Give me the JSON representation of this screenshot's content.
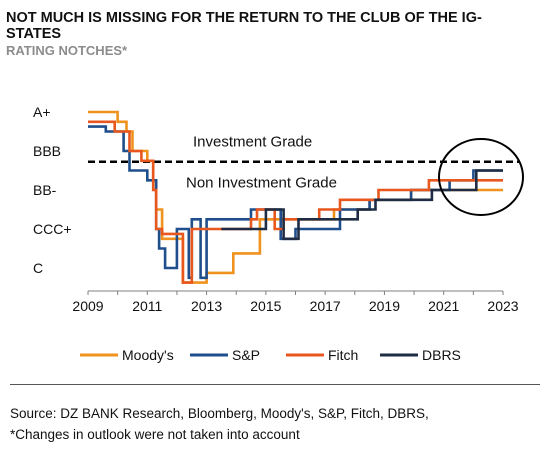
{
  "header": {
    "title": "NOT MUCH IS MISSING FOR THE RETURN TO THE CLUB OF THE IG-STATES",
    "subtitle": "RATING NOTCHES*"
  },
  "footer": {
    "source": "Source: DZ BANK Research, Bloomberg, Moody's, S&P, Fitch, DBRS,",
    "note": "*Changes in outlook were not taken into account"
  },
  "colors": {
    "moodys": "#F0921E",
    "sp": "#1F4E8C",
    "fitch": "#E8571E",
    "dbrs": "#1F2D44",
    "axis": "#7f7f7f"
  },
  "chart_data": {
    "type": "line",
    "title": "NOT MUCH IS MISSING FOR THE RETURN TO THE CLUB OF THE IG-STATES",
    "subtitle": "RATING NOTCHES*",
    "xlim": [
      2009,
      2023
    ],
    "ylim": [
      0,
      17
    ],
    "x_ticks": [
      2009,
      2011,
      2013,
      2015,
      2017,
      2019,
      2021,
      2023
    ],
    "y_ticks": [
      {
        "label": "A+",
        "value": 16
      },
      {
        "label": "BBB",
        "value": 12
      },
      {
        "label": "BB-",
        "value": 8
      },
      {
        "label": "CCC+",
        "value": 4
      },
      {
        "label": "C",
        "value": 0
      }
    ],
    "threshold": {
      "value": 10.9,
      "label_above": "Investment Grade",
      "label_below": "Non Investment Grade"
    },
    "legend_position": "bottom",
    "series": [
      {
        "name": "Moody's",
        "points": [
          [
            2009,
            16
          ],
          [
            2010.0,
            16
          ],
          [
            2010.0,
            15
          ],
          [
            2010.3,
            15
          ],
          [
            2010.3,
            14
          ],
          [
            2010.5,
            14
          ],
          [
            2010.5,
            12
          ],
          [
            2011.0,
            12
          ],
          [
            2011.0,
            11
          ],
          [
            2011.2,
            11
          ],
          [
            2011.2,
            9
          ],
          [
            2011.3,
            9
          ],
          [
            2011.3,
            6
          ],
          [
            2011.5,
            6
          ],
          [
            2011.5,
            3
          ],
          [
            2012.2,
            3
          ],
          [
            2012.2,
            -1.5
          ],
          [
            2013.0,
            -1.5
          ],
          [
            2013.0,
            -0.5
          ],
          [
            2013.9,
            -0.5
          ],
          [
            2013.9,
            1.5
          ],
          [
            2014.8,
            1.5
          ],
          [
            2014.8,
            5
          ],
          [
            2017.3,
            5
          ],
          [
            2017.3,
            6
          ],
          [
            2018.5,
            6
          ],
          [
            2018.5,
            7
          ],
          [
            2019.9,
            7
          ],
          [
            2019.9,
            8
          ],
          [
            2023,
            8
          ]
        ]
      },
      {
        "name": "S&P",
        "points": [
          [
            2009,
            14.5
          ],
          [
            2009.6,
            14.5
          ],
          [
            2009.6,
            14
          ],
          [
            2010.2,
            14
          ],
          [
            2010.2,
            12
          ],
          [
            2010.4,
            12
          ],
          [
            2010.4,
            10
          ],
          [
            2011.0,
            10
          ],
          [
            2011.0,
            9
          ],
          [
            2011.3,
            9
          ],
          [
            2011.3,
            4
          ],
          [
            2011.4,
            4
          ],
          [
            2011.4,
            2
          ],
          [
            2011.6,
            2
          ],
          [
            2011.6,
            0
          ],
          [
            2012.0,
            0
          ],
          [
            2012.0,
            4
          ],
          [
            2012.4,
            4
          ],
          [
            2012.4,
            -1
          ],
          [
            2012.5,
            -1
          ],
          [
            2012.5,
            5
          ],
          [
            2012.8,
            5
          ],
          [
            2012.8,
            -1
          ],
          [
            2013.0,
            -1
          ],
          [
            2013.0,
            5
          ],
          [
            2014.5,
            5
          ],
          [
            2014.5,
            6
          ],
          [
            2015.5,
            6
          ],
          [
            2015.5,
            3
          ],
          [
            2016.0,
            3
          ],
          [
            2016.0,
            4
          ],
          [
            2017.5,
            4
          ],
          [
            2017.5,
            6
          ],
          [
            2018.5,
            6
          ],
          [
            2018.5,
            7
          ],
          [
            2019.9,
            7
          ],
          [
            2019.9,
            8
          ],
          [
            2021.2,
            8
          ],
          [
            2021.2,
            9
          ],
          [
            2022.0,
            9
          ],
          [
            2022.0,
            10
          ],
          [
            2023,
            10
          ]
        ]
      },
      {
        "name": "Fitch",
        "points": [
          [
            2009,
            15
          ],
          [
            2009.9,
            15
          ],
          [
            2009.9,
            14
          ],
          [
            2010.4,
            14
          ],
          [
            2010.4,
            12
          ],
          [
            2010.8,
            12
          ],
          [
            2010.8,
            11
          ],
          [
            2011.2,
            11
          ],
          [
            2011.2,
            8
          ],
          [
            2011.3,
            8
          ],
          [
            2011.3,
            4
          ],
          [
            2011.5,
            4
          ],
          [
            2011.5,
            3.5
          ],
          [
            2012.2,
            3.5
          ],
          [
            2012.2,
            -1.5
          ],
          [
            2012.5,
            -1.5
          ],
          [
            2012.5,
            4
          ],
          [
            2014.5,
            4
          ],
          [
            2014.5,
            5
          ],
          [
            2014.7,
            5
          ],
          [
            2014.7,
            6
          ],
          [
            2015.3,
            6
          ],
          [
            2015.3,
            4
          ],
          [
            2015.6,
            4
          ],
          [
            2015.6,
            5
          ],
          [
            2016.8,
            5
          ],
          [
            2016.8,
            6
          ],
          [
            2017.5,
            6
          ],
          [
            2017.5,
            7
          ],
          [
            2018.8,
            7
          ],
          [
            2018.8,
            8
          ],
          [
            2020.5,
            8
          ],
          [
            2020.5,
            9
          ],
          [
            2022.2,
            9
          ],
          [
            2023,
            9
          ]
        ]
      },
      {
        "name": "DBRS",
        "points": [
          [
            2013.5,
            4
          ],
          [
            2015.0,
            4
          ],
          [
            2015.0,
            6
          ],
          [
            2015.6,
            6
          ],
          [
            2015.6,
            3
          ],
          [
            2016.1,
            3
          ],
          [
            2016.1,
            5
          ],
          [
            2018.1,
            5
          ],
          [
            2018.1,
            6
          ],
          [
            2018.7,
            6
          ],
          [
            2018.7,
            7
          ],
          [
            2020.6,
            7
          ],
          [
            2020.6,
            8
          ],
          [
            2022.1,
            8
          ],
          [
            2022.1,
            10
          ],
          [
            2023,
            10
          ]
        ]
      }
    ]
  }
}
